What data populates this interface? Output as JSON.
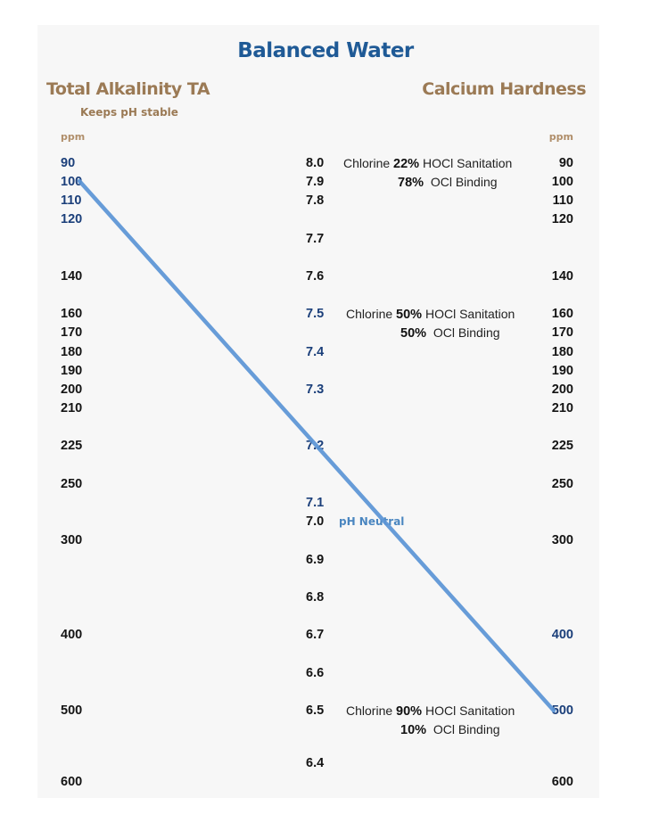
{
  "title": "Balanced Water",
  "left_scale": {
    "heading": "Total Alkalinity TA",
    "subheading": "Keeps pH stable",
    "unit": "ppm",
    "values": [
      {
        "label": "90",
        "highlight": true
      },
      {
        "label": "100",
        "highlight": true
      },
      {
        "label": "110",
        "highlight": true
      },
      {
        "label": "120",
        "highlight": true
      },
      {
        "label": "140",
        "highlight": false
      },
      {
        "label": "160",
        "highlight": false
      },
      {
        "label": "170",
        "highlight": false
      },
      {
        "label": "180",
        "highlight": false
      },
      {
        "label": "190",
        "highlight": false
      },
      {
        "label": "200",
        "highlight": false
      },
      {
        "label": "210",
        "highlight": false
      },
      {
        "label": "225",
        "highlight": false
      },
      {
        "label": "250",
        "highlight": false
      },
      {
        "label": "300",
        "highlight": false
      },
      {
        "label": "400",
        "highlight": false
      },
      {
        "label": "500",
        "highlight": false
      },
      {
        "label": "600",
        "highlight": false
      }
    ]
  },
  "right_scale": {
    "heading": "Calcium Hardness",
    "unit": "ppm",
    "values": [
      {
        "label": "90",
        "highlight": false
      },
      {
        "label": "100",
        "highlight": false
      },
      {
        "label": "110",
        "highlight": false
      },
      {
        "label": "120",
        "highlight": false
      },
      {
        "label": "140",
        "highlight": false
      },
      {
        "label": "160",
        "highlight": false
      },
      {
        "label": "170",
        "highlight": false
      },
      {
        "label": "180",
        "highlight": false
      },
      {
        "label": "190",
        "highlight": false
      },
      {
        "label": "200",
        "highlight": false
      },
      {
        "label": "210",
        "highlight": false
      },
      {
        "label": "225",
        "highlight": false
      },
      {
        "label": "250",
        "highlight": false
      },
      {
        "label": "300",
        "highlight": false
      },
      {
        "label": "400",
        "highlight": true
      },
      {
        "label": "500",
        "highlight": true
      },
      {
        "label": "600",
        "highlight": false
      }
    ]
  },
  "ph_scale": {
    "values": [
      {
        "label": "8.0",
        "highlight": false
      },
      {
        "label": "7.9",
        "highlight": false
      },
      {
        "label": "7.8",
        "highlight": false
      },
      {
        "label": "7.7",
        "highlight": false
      },
      {
        "label": "7.6",
        "highlight": false
      },
      {
        "label": "7.5",
        "highlight": true
      },
      {
        "label": "7.4",
        "highlight": true
      },
      {
        "label": "7.3",
        "highlight": true
      },
      {
        "label": "7.2",
        "highlight": true
      },
      {
        "label": "7.1",
        "highlight": true
      },
      {
        "label": "7.0",
        "highlight": false
      },
      {
        "label": "6.9",
        "highlight": false
      },
      {
        "label": "6.8",
        "highlight": false
      },
      {
        "label": "6.7",
        "highlight": false
      },
      {
        "label": "6.6",
        "highlight": false
      },
      {
        "label": "6.5",
        "highlight": false
      },
      {
        "label": "6.4",
        "highlight": false
      }
    ],
    "neutral_label": "pH Neutral"
  },
  "chlorine_notes": [
    {
      "ph": "8.0",
      "prefix": "Chlorine",
      "hocl_pct": "22%",
      "hocl_text": "HOCl Sanitation",
      "ocl_pct": "78%",
      "ocl_text": "OCl Binding"
    },
    {
      "ph": "7.5",
      "prefix": "Chlorine",
      "hocl_pct": "50%",
      "hocl_text": "HOCl Sanitation",
      "ocl_pct": "50%",
      "ocl_text": "OCl Binding"
    },
    {
      "ph": "6.5",
      "prefix": "Chlorine",
      "hocl_pct": "90%",
      "hocl_text": "HOCl Sanitation",
      "ocl_pct": "10%",
      "ocl_text": "OCl  Binding"
    }
  ],
  "balance_line": {
    "from": {
      "scale": "Total Alkalinity TA",
      "value": "100"
    },
    "through": {
      "scale": "pH",
      "value": "7.2"
    },
    "to": {
      "scale": "Calcium Hardness",
      "value": "500"
    },
    "color": "#5b95d6"
  },
  "colors": {
    "title": "#1f5a96",
    "heading": "#9b7a55",
    "highlight_value": "#1b3f7a",
    "value": "#141414",
    "neutral": "#4a86c0"
  }
}
